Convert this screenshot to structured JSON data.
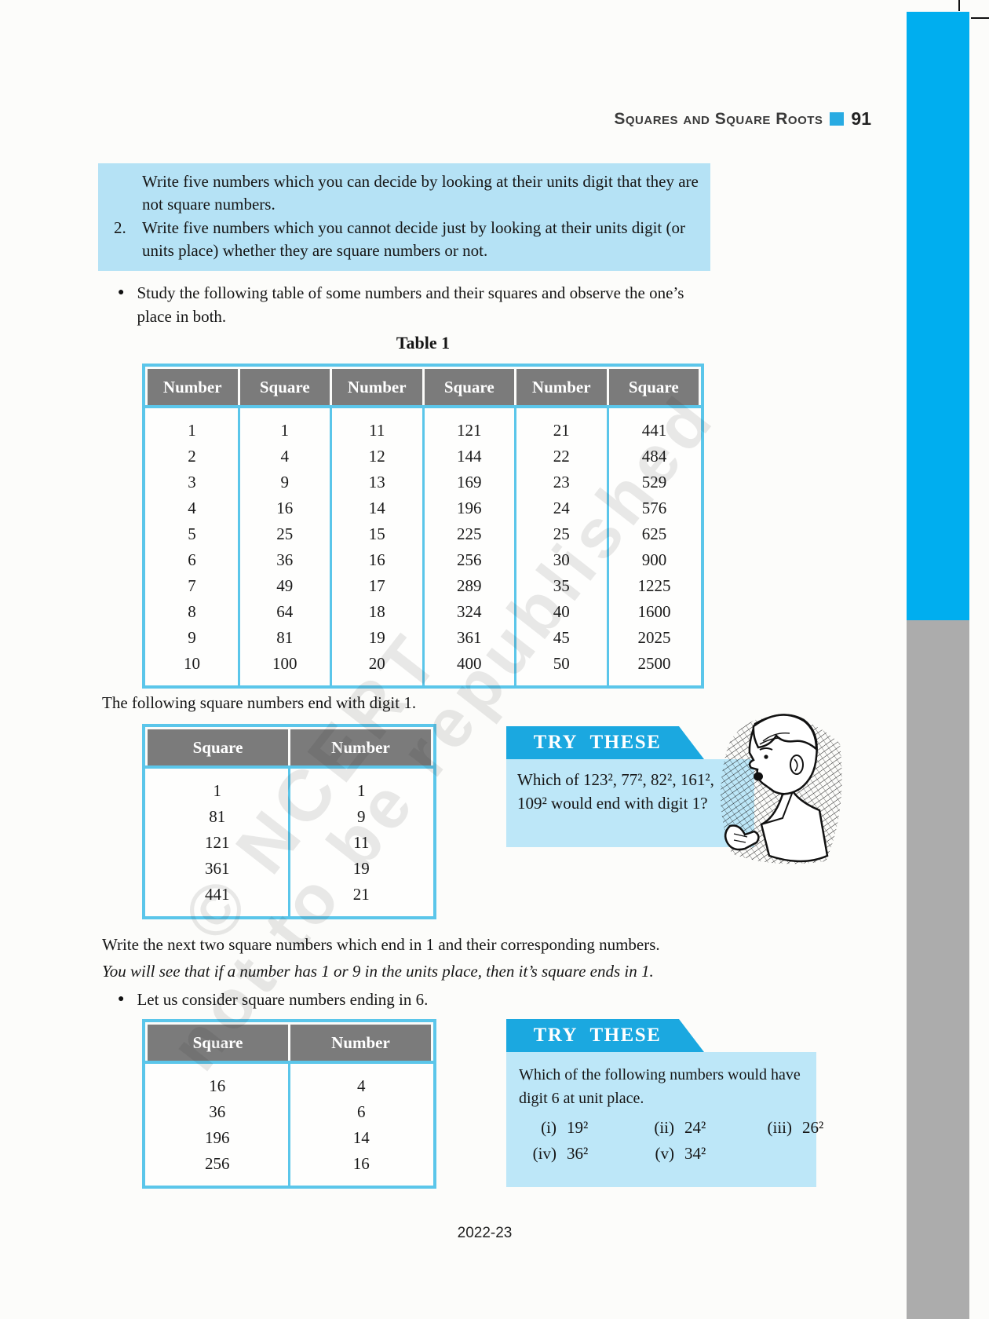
{
  "header": {
    "chapter_title": "Squares and Square Roots",
    "page_number": "91"
  },
  "exercise_box": {
    "item1_text": "Write five numbers which you can decide by looking at their units digit that they are not square numbers.",
    "item2_label": "2.",
    "item2_text": "Write five numbers which you cannot decide just by looking at their units digit (or units place) whether they are square numbers or not."
  },
  "bullets": {
    "study_table": "Study the following table of some numbers and their squares and observe the one’s place in both.",
    "ending_in_6": "Let us consider square numbers ending in 6."
  },
  "table1": {
    "title": "Table 1",
    "headers": [
      "Number",
      "Square",
      "Number",
      "Square",
      "Number",
      "Square"
    ],
    "rows": [
      [
        "1",
        "1",
        "11",
        "121",
        "21",
        "441"
      ],
      [
        "2",
        "4",
        "12",
        "144",
        "22",
        "484"
      ],
      [
        "3",
        "9",
        "13",
        "169",
        "23",
        "529"
      ],
      [
        "4",
        "16",
        "14",
        "196",
        "24",
        "576"
      ],
      [
        "5",
        "25",
        "15",
        "225",
        "25",
        "625"
      ],
      [
        "6",
        "36",
        "16",
        "256",
        "30",
        "900"
      ],
      [
        "7",
        "49",
        "17",
        "289",
        "35",
        "1225"
      ],
      [
        "8",
        "64",
        "18",
        "324",
        "40",
        "1600"
      ],
      [
        "9",
        "81",
        "19",
        "361",
        "45",
        "2025"
      ],
      [
        "10",
        "100",
        "20",
        "400",
        "50",
        "2500"
      ]
    ]
  },
  "para_end_digit_1": "The following square numbers end with digit 1.",
  "table_digit1": {
    "headers": [
      "Square",
      "Number"
    ],
    "rows": [
      [
        "1",
        "1"
      ],
      [
        "81",
        "9"
      ],
      [
        "121",
        "11"
      ],
      [
        "361",
        "19"
      ],
      [
        "441",
        "21"
      ]
    ]
  },
  "try_these_1": {
    "title": "TRY THESE",
    "question": "Which of 123², 77², 82², 161², 109² would end with digit 1?"
  },
  "para_next_two": "Write the next two square numbers which end in 1 and their corresponding numbers.",
  "para_italic": "You will see that if a number has 1 or 9 in the units place, then it’s square ends in 1.",
  "table_digit6": {
    "headers": [
      "Square",
      "Number"
    ],
    "rows": [
      [
        "16",
        "4"
      ],
      [
        "36",
        "6"
      ],
      [
        "196",
        "14"
      ],
      [
        "256",
        "16"
      ]
    ]
  },
  "try_these_2": {
    "title": "TRY THESE",
    "question": "Which of the following numbers would have digit 6 at unit place.",
    "options": [
      {
        "label": "(i)",
        "value": "19²"
      },
      {
        "label": "(ii)",
        "value": "24²"
      },
      {
        "label": "(iii)",
        "value": "26²"
      },
      {
        "label": "(iv)",
        "value": "36²"
      },
      {
        "label": "(v)",
        "value": "34²"
      }
    ]
  },
  "watermark": {
    "line1": "© NCERT",
    "line2": "not to be republished"
  },
  "footer": {
    "year_label": "2022-23"
  },
  "colors": {
    "accent_cyan": "#00AEEF",
    "banner_cyan": "#1BA8E0",
    "table_border": "#5BC6EA",
    "light_blue_box": "#B5E2F5",
    "try_these_body": "#BDE7F8",
    "table_header_grey": "#7B7B7B",
    "sidebar_grey": "#ACACAC"
  }
}
